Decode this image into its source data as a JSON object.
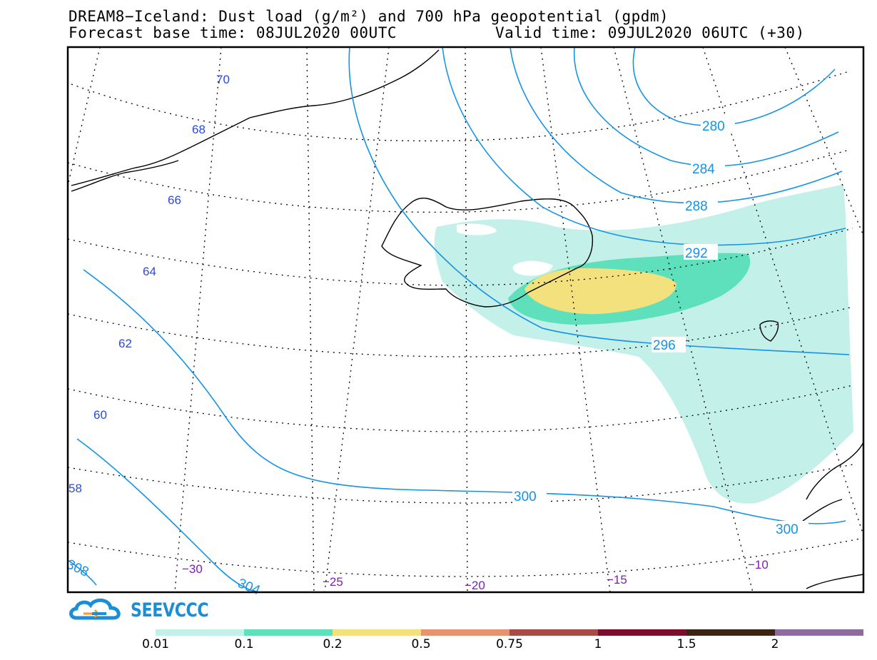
{
  "title": {
    "line1": "DREAM8−Iceland: Dust load (g/m²) and 700 hPa geopotential (gpdm)",
    "base_time": "Forecast base time: 08JUL2020 00UTC",
    "valid_time": "Valid time: 09JUL2020 06UTC (+30)"
  },
  "latitude_labels": [
    "70",
    "68",
    "66",
    "64",
    "62",
    "60",
    "58"
  ],
  "longitude_labels": [
    "−30",
    "−25",
    "−20",
    "−15",
    "−10"
  ],
  "contour_labels": [
    "280",
    "284",
    "288",
    "292",
    "296",
    "300",
    "300",
    "304",
    "308"
  ],
  "logo": {
    "text": "SEEVCCC"
  },
  "colorbar": {
    "colors": [
      "#c4f0ea",
      "#5fe0bd",
      "#f2e17d",
      "#e8936f",
      "#a84b48",
      "#7a0f2d",
      "#3b2412",
      "#8e6a9e"
    ],
    "labels": [
      "0.01",
      "0.1",
      "0.2",
      "0.5",
      "0.75",
      "1",
      "1.5",
      "2"
    ]
  },
  "colors": {
    "contour": "#1593e6",
    "lat_label": "#2a4bd6",
    "lon_label": "#7a20b8"
  }
}
